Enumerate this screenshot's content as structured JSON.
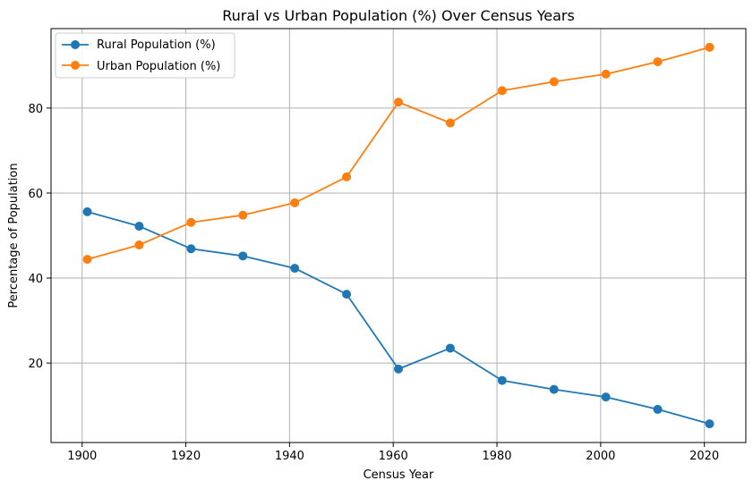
{
  "chart_data": {
    "type": "line",
    "title": "Rural vs Urban Population (%) Over Census Years",
    "xlabel": "Census Year",
    "ylabel": "Percentage of Population",
    "x": [
      1901,
      1911,
      1921,
      1931,
      1941,
      1951,
      1961,
      1971,
      1981,
      1991,
      2001,
      2011,
      2021
    ],
    "series": [
      {
        "name": "Rural Population (%)",
        "color": "#1f77b4",
        "marker": "circle",
        "values": [
          55.6,
          52.2,
          46.9,
          45.2,
          42.3,
          36.2,
          18.6,
          23.5,
          15.9,
          13.8,
          12.0,
          9.1,
          5.7
        ]
      },
      {
        "name": "Urban Population (%)",
        "color": "#ff7f0e",
        "marker": "circle",
        "values": [
          44.4,
          47.8,
          53.1,
          54.8,
          57.7,
          63.8,
          81.4,
          76.5,
          84.1,
          86.2,
          88.0,
          90.9,
          94.3
        ]
      }
    ],
    "xlim": [
      1894.0,
      2028.0
    ],
    "ylim": [
      1.3,
      98.7
    ],
    "xticks": [
      1900,
      1920,
      1940,
      1960,
      1980,
      2000,
      2020
    ],
    "yticks": [
      20,
      40,
      60,
      80
    ],
    "grid": true,
    "legend_position": "top-left"
  }
}
